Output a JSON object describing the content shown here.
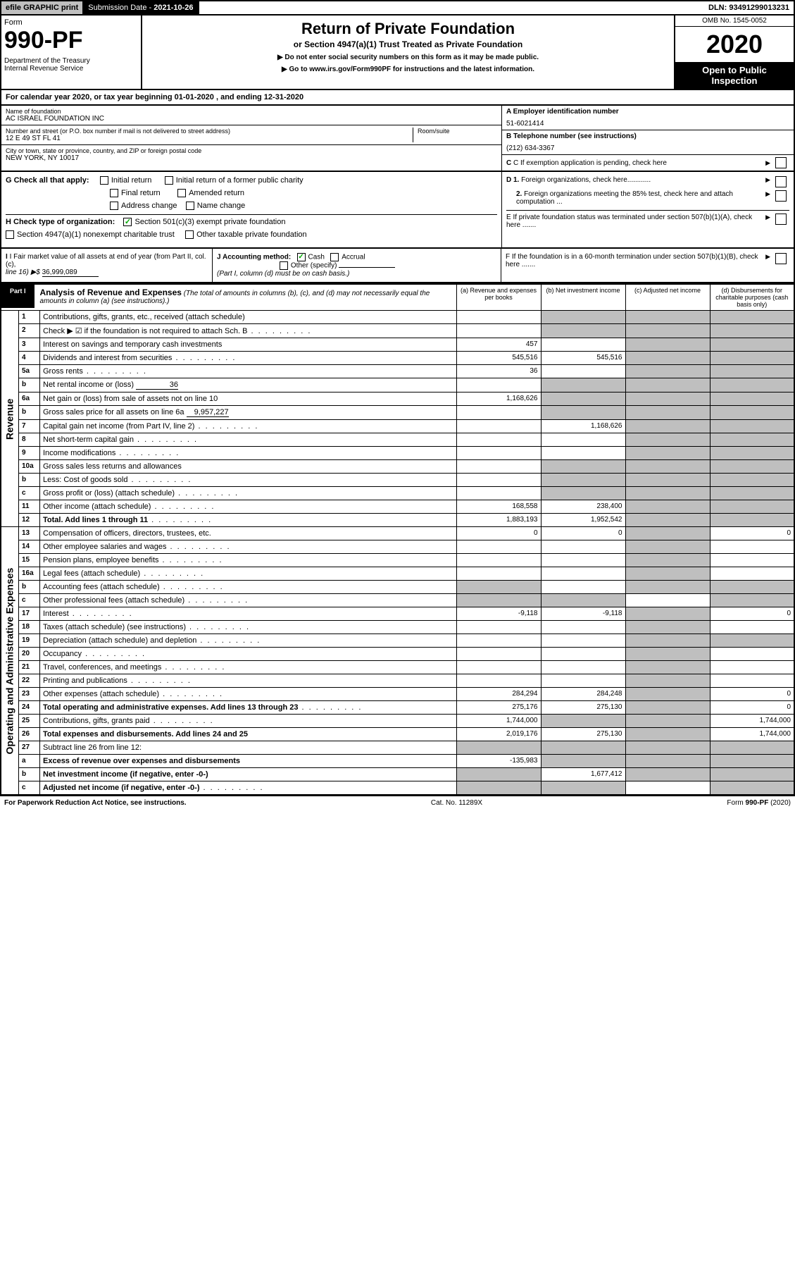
{
  "header": {
    "efile": "efile GRAPHIC print",
    "subLabel": "Submission Date - ",
    "subDate": "2021-10-26",
    "dln": "DLN: 93491299013231"
  },
  "formHead": {
    "form": "Form",
    "number": "990-PF",
    "dept": "Department of the Treasury\nInternal Revenue Service",
    "title": "Return of Private Foundation",
    "subtitle": "or Section 4947(a)(1) Trust Treated as Private Foundation",
    "note1": "▶ Do not enter social security numbers on this form as it may be made public.",
    "note2": "▶ Go to www.irs.gov/Form990PF for instructions and the latest information.",
    "omb": "OMB No. 1545-0052",
    "year": "2020",
    "open": "Open to Public Inspection"
  },
  "calLine": "For calendar year 2020, or tax year beginning 01-01-2020             , and ending 12-31-2020",
  "meta": {
    "nameLbl": "Name of foundation",
    "name": "AC ISRAEL FOUNDATION INC",
    "addrLbl": "Number and street (or P.O. box number if mail is not delivered to street address)",
    "addr": "12 E 49 ST FL 41",
    "roomLbl": "Room/suite",
    "cityLbl": "City or town, state or province, country, and ZIP or foreign postal code",
    "city": "NEW YORK, NY  10017",
    "einLbl": "A Employer identification number",
    "ein": "51-6021414",
    "telLbl": "B Telephone number (see instructions)",
    "tel": "(212) 634-3367",
    "cLbl": "C If exemption application is pending, check here"
  },
  "sectG": {
    "label": "G Check all that apply:",
    "opts": [
      "Initial return",
      "Final return",
      "Address change",
      "Initial return of a former public charity",
      "Amended return",
      "Name change"
    ]
  },
  "sectH": {
    "label": "H Check type of organization:",
    "opt1": "Section 501(c)(3) exempt private foundation",
    "opt2": "Section 4947(a)(1) nonexempt charitable trust",
    "opt3": "Other taxable private foundation"
  },
  "sectD": {
    "d1": "D 1. Foreign organizations, check here............",
    "d2": "2. Foreign organizations meeting the 85% test, check here and attach computation ...",
    "e": "E  If private foundation status was terminated under section 507(b)(1)(A), check here .......",
    "f": "F  If the foundation is in a 60-month termination under section 507(b)(1)(B), check here ......."
  },
  "sectI": {
    "label": "I Fair market value of all assets at end of year (from Part II, col. (c),",
    "line16": "line 16) ▶$",
    "val": "36,999,089"
  },
  "sectJ": {
    "label": "J Accounting method:",
    "cash": "Cash",
    "accrual": "Accrual",
    "other": "Other (specify)",
    "note": "(Part I, column (d) must be on cash basis.)"
  },
  "part1": {
    "tab": "Part I",
    "title": "Analysis of Revenue and Expenses",
    "titleNote": "(The total of amounts in columns (b), (c), and (d) may not necessarily equal the amounts in column (a) (see instructions).)",
    "colA": "(a)   Revenue and expenses per books",
    "colB": "(b)   Net investment income",
    "colC": "(c)  Adjusted net income",
    "colD": "(d)  Disbursements for charitable purposes (cash basis only)"
  },
  "vlabels": {
    "rev": "Revenue",
    "exp": "Operating and Administrative Expenses"
  },
  "rows": [
    {
      "n": "1",
      "d": "Contributions, gifts, grants, etc., received (attach schedule)"
    },
    {
      "n": "2",
      "d": "Check ▶ ☑ if the foundation is not required to attach Sch. B",
      "dots": true
    },
    {
      "n": "3",
      "d": "Interest on savings and temporary cash investments",
      "a": "457"
    },
    {
      "n": "4",
      "d": "Dividends and interest from securities",
      "dots": true,
      "a": "545,516",
      "b": "545,516"
    },
    {
      "n": "5a",
      "d": "Gross rents",
      "dots": true,
      "a": "36"
    },
    {
      "n": "b",
      "d": "Net rental income or (loss)",
      "inlineVal": "36"
    },
    {
      "n": "6a",
      "d": "Net gain or (loss) from sale of assets not on line 10",
      "a": "1,168,626"
    },
    {
      "n": "b",
      "d": "Gross sales price for all assets on line 6a",
      "inlineVal": "9,957,227"
    },
    {
      "n": "7",
      "d": "Capital gain net income (from Part IV, line 2)",
      "dots": true,
      "b": "1,168,626"
    },
    {
      "n": "8",
      "d": "Net short-term capital gain",
      "dots": true
    },
    {
      "n": "9",
      "d": "Income modifications",
      "dots": true
    },
    {
      "n": "10a",
      "d": "Gross sales less returns and allowances"
    },
    {
      "n": "b",
      "d": "Less: Cost of goods sold",
      "dots": true
    },
    {
      "n": "c",
      "d": "Gross profit or (loss) (attach schedule)",
      "dots": true
    },
    {
      "n": "11",
      "d": "Other income (attach schedule)",
      "dots": true,
      "a": "168,558",
      "b": "238,400"
    },
    {
      "n": "12",
      "d": "Total. Add lines 1 through 11",
      "dots": true,
      "bold": true,
      "a": "1,883,193",
      "b": "1,952,542"
    }
  ],
  "expRows": [
    {
      "n": "13",
      "d": "Compensation of officers, directors, trustees, etc.",
      "a": "0",
      "b": "0",
      "dd": "0"
    },
    {
      "n": "14",
      "d": "Other employee salaries and wages",
      "dots": true
    },
    {
      "n": "15",
      "d": "Pension plans, employee benefits",
      "dots": true
    },
    {
      "n": "16a",
      "d": "Legal fees (attach schedule)",
      "dots": true
    },
    {
      "n": "b",
      "d": "Accounting fees (attach schedule)",
      "dots": true
    },
    {
      "n": "c",
      "d": "Other professional fees (attach schedule)",
      "dots": true
    },
    {
      "n": "17",
      "d": "Interest",
      "dots": true,
      "a": "-9,118",
      "b": "-9,118",
      "dd": "0"
    },
    {
      "n": "18",
      "d": "Taxes (attach schedule) (see instructions)",
      "dots": true
    },
    {
      "n": "19",
      "d": "Depreciation (attach schedule) and depletion",
      "dots": true
    },
    {
      "n": "20",
      "d": "Occupancy",
      "dots": true
    },
    {
      "n": "21",
      "d": "Travel, conferences, and meetings",
      "dots": true
    },
    {
      "n": "22",
      "d": "Printing and publications",
      "dots": true
    },
    {
      "n": "23",
      "d": "Other expenses (attach schedule)",
      "dots": true,
      "a": "284,294",
      "b": "284,248",
      "dd": "0"
    },
    {
      "n": "24",
      "d": "Total operating and administrative expenses. Add lines 13 through 23",
      "dots": true,
      "bold": true,
      "a": "275,176",
      "b": "275,130",
      "dd": "0"
    },
    {
      "n": "25",
      "d": "Contributions, gifts, grants paid",
      "dots": true,
      "a": "1,744,000",
      "dd": "1,744,000"
    },
    {
      "n": "26",
      "d": "Total expenses and disbursements. Add lines 24 and 25",
      "bold": true,
      "a": "2,019,176",
      "b": "275,130",
      "dd": "1,744,000"
    },
    {
      "n": "27",
      "d": "Subtract line 26 from line 12:"
    },
    {
      "n": "a",
      "d": "Excess of revenue over expenses and disbursements",
      "bold": true,
      "a": "-135,983"
    },
    {
      "n": "b",
      "d": "Net investment income (if negative, enter -0-)",
      "bold": true,
      "b": "1,677,412"
    },
    {
      "n": "c",
      "d": "Adjusted net income (if negative, enter -0-)",
      "bold": true,
      "dots": true
    }
  ],
  "footer": {
    "left": "For Paperwork Reduction Act Notice, see instructions.",
    "mid": "Cat. No. 11289X",
    "right": "Form 990-PF (2020)"
  },
  "grayCells": {
    "revGrayC": [
      1,
      2,
      4,
      5,
      8,
      9,
      10,
      11,
      12,
      13,
      14,
      15
    ],
    "revGrayD": [
      1,
      2,
      3,
      4,
      5,
      6,
      7,
      8,
      9,
      10,
      11,
      12,
      13,
      14,
      15,
      16
    ],
    "revGrayB": [
      1,
      2,
      6,
      7,
      8,
      10
    ],
    "revGrayA": [
      6,
      8,
      10,
      12,
      13,
      14
    ],
    "expGrayC": true,
    "expGrayD19": true,
    "expGrayB25": true
  }
}
